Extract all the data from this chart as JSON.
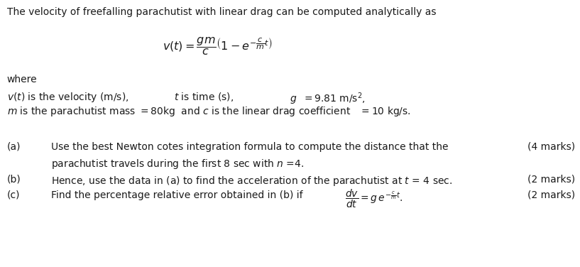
{
  "bg_color": "#ffffff",
  "text_color": "#1a1a1a",
  "figsize": [
    8.17,
    3.76
  ],
  "dpi": 100,
  "fs": 10.0
}
